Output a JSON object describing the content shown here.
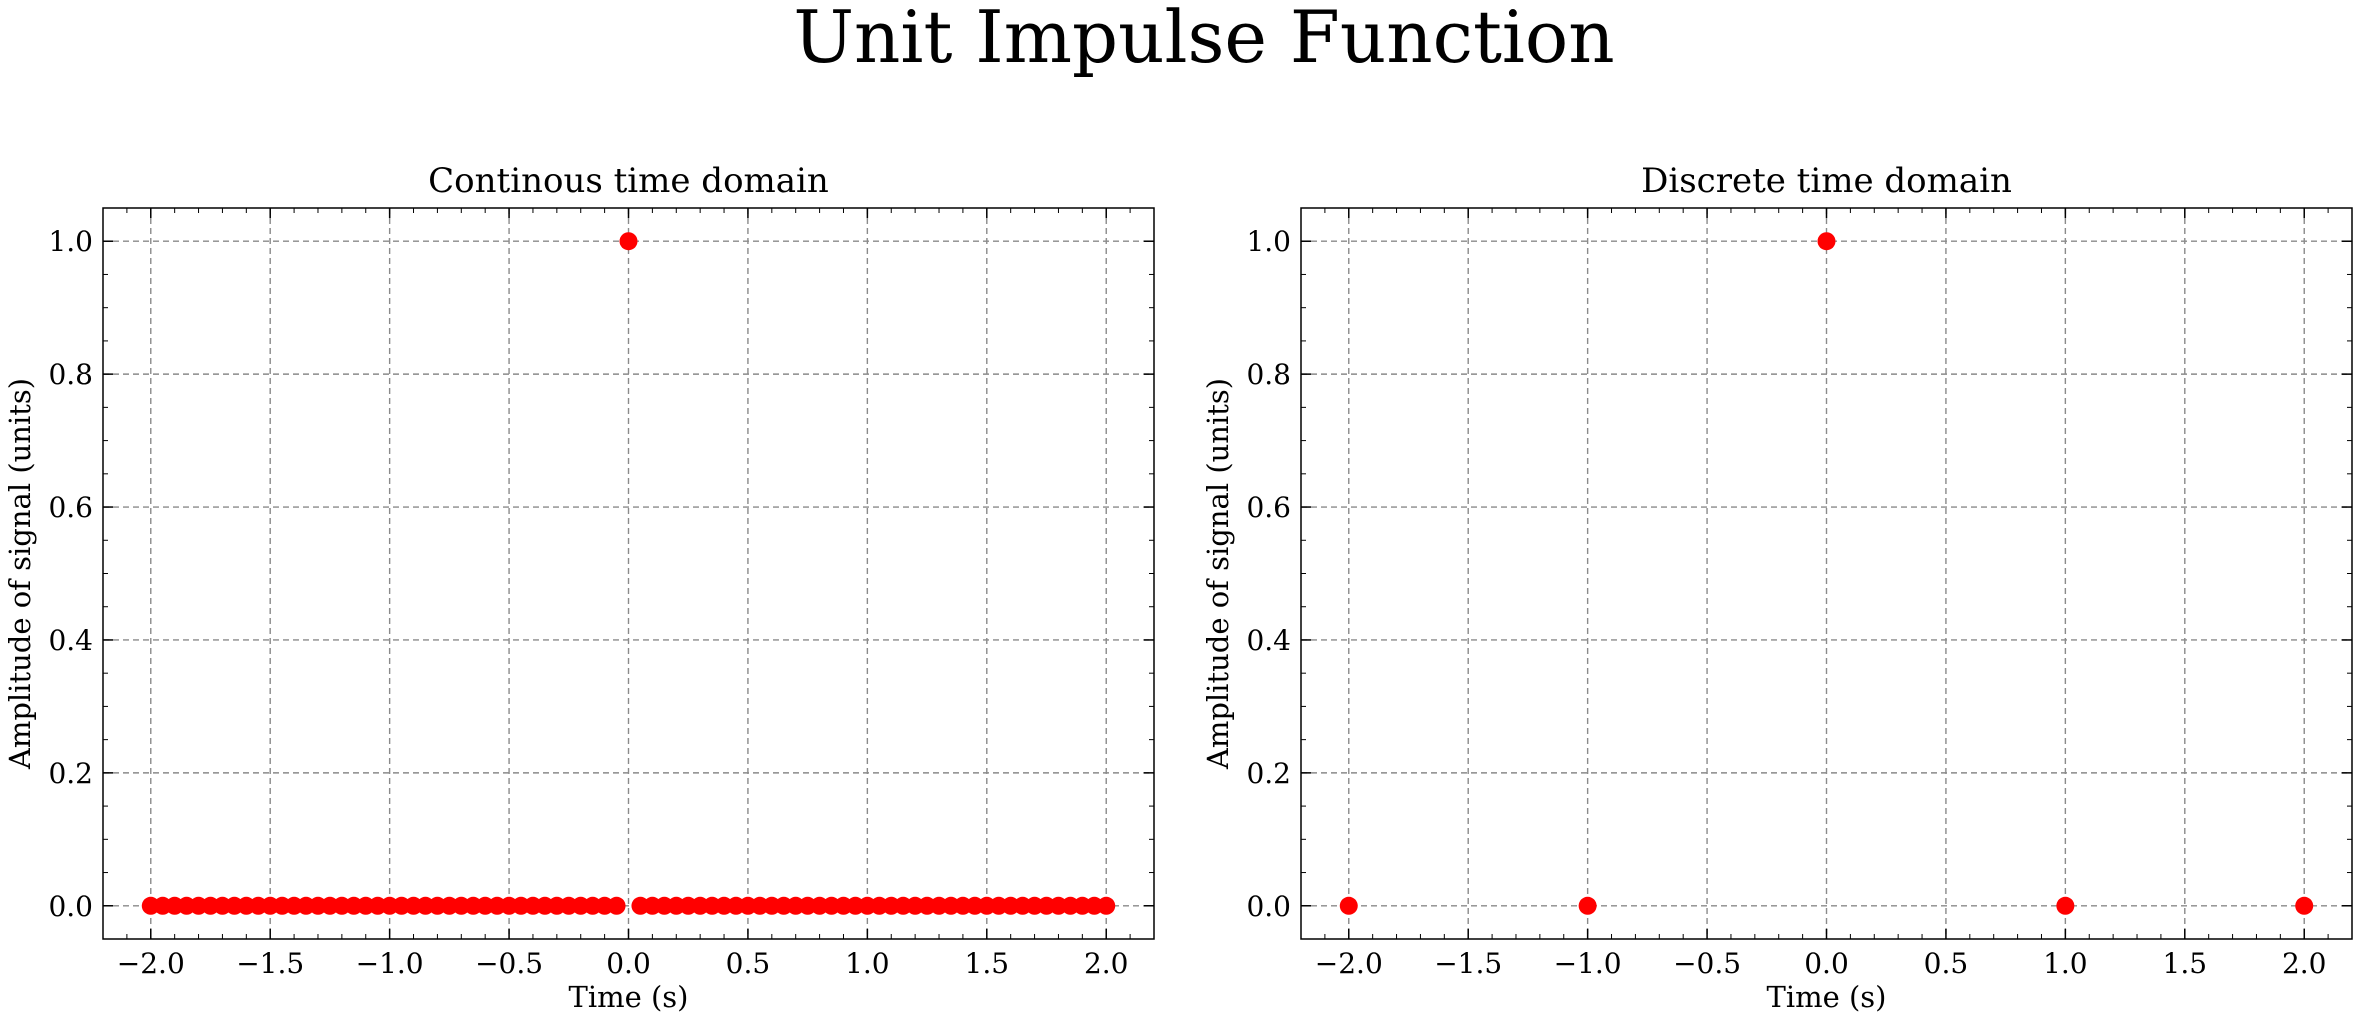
{
  "figure": {
    "suptitle": "Unit Impulse Function"
  },
  "marker_color": "#ff0000",
  "grid_color": "#8a8a8a",
  "chart_data": [
    {
      "type": "scatter",
      "title": "Continous time domain",
      "xlabel": "Time (s)",
      "ylabel": "Amplitude of signal (units)",
      "xlim": [
        -2.2,
        2.2
      ],
      "ylim": [
        -0.05,
        1.05
      ],
      "xticks": [
        -2.0,
        -1.5,
        -1.0,
        -0.5,
        0.0,
        0.5,
        1.0,
        1.5,
        2.0
      ],
      "xtick_labels": [
        "−2.0",
        "−1.5",
        "−1.0",
        "−0.5",
        "0.0",
        "0.5",
        "1.0",
        "1.5",
        "2.0"
      ],
      "yticks": [
        0.0,
        0.2,
        0.4,
        0.6,
        0.8,
        1.0
      ],
      "ytick_labels": [
        "0.0",
        "0.2",
        "0.4",
        "0.6",
        "0.8",
        "1.0"
      ],
      "grid": true,
      "series": [
        {
          "x": [
            -2.0,
            -1.95,
            -1.9,
            -1.85,
            -1.8,
            -1.75,
            -1.7,
            -1.65,
            -1.6,
            -1.55,
            -1.5,
            -1.45,
            -1.4,
            -1.35,
            -1.3,
            -1.25,
            -1.2,
            -1.15,
            -1.1,
            -1.05,
            -1.0,
            -0.95,
            -0.9,
            -0.85,
            -0.8,
            -0.75,
            -0.7,
            -0.65,
            -0.6,
            -0.55,
            -0.5,
            -0.45,
            -0.4,
            -0.35,
            -0.3,
            -0.25,
            -0.2,
            -0.15,
            -0.1,
            -0.05,
            0.0,
            0.05,
            0.1,
            0.15,
            0.2,
            0.25,
            0.3,
            0.35,
            0.4,
            0.45,
            0.5,
            0.55,
            0.6,
            0.65,
            0.7,
            0.75,
            0.8,
            0.85,
            0.9,
            0.95,
            1.0,
            1.05,
            1.1,
            1.15,
            1.2,
            1.25,
            1.3,
            1.35,
            1.4,
            1.45,
            1.5,
            1.55,
            1.6,
            1.65,
            1.7,
            1.75,
            1.8,
            1.85,
            1.9,
            1.95,
            2.0
          ],
          "y": [
            0,
            0,
            0,
            0,
            0,
            0,
            0,
            0,
            0,
            0,
            0,
            0,
            0,
            0,
            0,
            0,
            0,
            0,
            0,
            0,
            0,
            0,
            0,
            0,
            0,
            0,
            0,
            0,
            0,
            0,
            0,
            0,
            0,
            0,
            0,
            0,
            0,
            0,
            0,
            0,
            1,
            0,
            0,
            0,
            0,
            0,
            0,
            0,
            0,
            0,
            0,
            0,
            0,
            0,
            0,
            0,
            0,
            0,
            0,
            0,
            0,
            0,
            0,
            0,
            0,
            0,
            0,
            0,
            0,
            0,
            0,
            0,
            0,
            0,
            0,
            0,
            0,
            0,
            0,
            0,
            0
          ]
        }
      ]
    },
    {
      "type": "scatter",
      "title": "Discrete time domain",
      "xlabel": "Time (s)",
      "ylabel": "Amplitude of signal (units)",
      "xlim": [
        -2.2,
        2.2
      ],
      "ylim": [
        -0.05,
        1.05
      ],
      "xticks": [
        -2.0,
        -1.5,
        -1.0,
        -0.5,
        0.0,
        0.5,
        1.0,
        1.5,
        2.0
      ],
      "xtick_labels": [
        "−2.0",
        "−1.5",
        "−1.0",
        "−0.5",
        "0.0",
        "0.5",
        "1.0",
        "1.5",
        "2.0"
      ],
      "yticks": [
        0.0,
        0.2,
        0.4,
        0.6,
        0.8,
        1.0
      ],
      "ytick_labels": [
        "0.0",
        "0.2",
        "0.4",
        "0.6",
        "0.8",
        "1.0"
      ],
      "grid": true,
      "series": [
        {
          "x": [
            -2,
            -1,
            0,
            1,
            2
          ],
          "y": [
            0,
            0,
            1,
            0,
            0
          ]
        }
      ]
    }
  ]
}
